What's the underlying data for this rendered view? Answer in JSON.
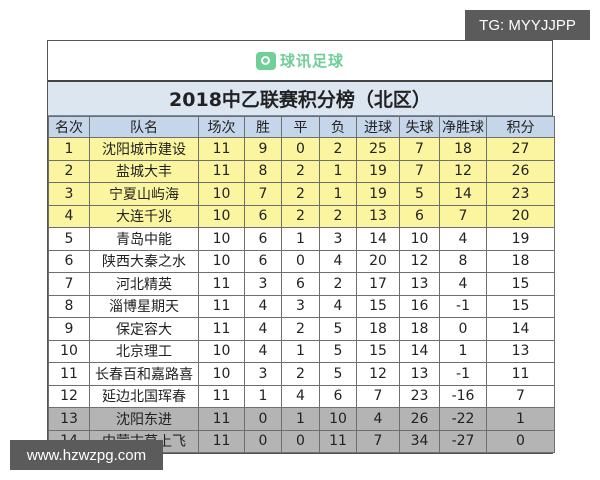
{
  "logo": {
    "text": "球讯足球",
    "icon": "speech-bubble-icon",
    "color": "#6fcf97"
  },
  "title": "2018中乙联赛积分榜（北区）",
  "colors": {
    "header_bg": "#c5d5ea",
    "title_bg": "#dce6f1",
    "promotion_rows": "#fcf5a0",
    "relegation_rows": "#b4b4b4"
  },
  "table": {
    "headers": [
      "名次",
      "队名",
      "场次",
      "胜",
      "平",
      "负",
      "进球",
      "失球",
      "净胜球",
      "积分"
    ],
    "rows": [
      {
        "zone": "top",
        "cells": [
          "1",
          "沈阳城市建设",
          "11",
          "9",
          "0",
          "2",
          "25",
          "7",
          "18",
          "27"
        ]
      },
      {
        "zone": "top",
        "cells": [
          "2",
          "盐城大丰",
          "11",
          "8",
          "2",
          "1",
          "19",
          "7",
          "12",
          "26"
        ]
      },
      {
        "zone": "top",
        "cells": [
          "3",
          "宁夏山屿海",
          "10",
          "7",
          "2",
          "1",
          "19",
          "5",
          "14",
          "23"
        ]
      },
      {
        "zone": "top",
        "cells": [
          "4",
          "大连千兆",
          "10",
          "6",
          "2",
          "2",
          "13",
          "6",
          "7",
          "20"
        ]
      },
      {
        "zone": "mid",
        "cells": [
          "5",
          "青岛中能",
          "10",
          "6",
          "1",
          "3",
          "14",
          "10",
          "4",
          "19"
        ]
      },
      {
        "zone": "mid",
        "cells": [
          "6",
          "陕西大秦之水",
          "10",
          "6",
          "0",
          "4",
          "20",
          "12",
          "8",
          "18"
        ]
      },
      {
        "zone": "mid",
        "cells": [
          "7",
          "河北精英",
          "11",
          "3",
          "6",
          "2",
          "17",
          "13",
          "4",
          "15"
        ]
      },
      {
        "zone": "mid",
        "cells": [
          "8",
          "淄博星期天",
          "11",
          "4",
          "3",
          "4",
          "15",
          "16",
          "-1",
          "15"
        ]
      },
      {
        "zone": "mid",
        "cells": [
          "9",
          "保定容大",
          "11",
          "4",
          "2",
          "5",
          "18",
          "18",
          "0",
          "14"
        ]
      },
      {
        "zone": "mid",
        "cells": [
          "10",
          "北京理工",
          "10",
          "4",
          "1",
          "5",
          "15",
          "14",
          "1",
          "13"
        ]
      },
      {
        "zone": "mid",
        "cells": [
          "11",
          "长春百和嘉路喜",
          "10",
          "3",
          "2",
          "5",
          "12",
          "13",
          "-1",
          "11"
        ]
      },
      {
        "zone": "mid",
        "cells": [
          "12",
          "延边北国珲春",
          "11",
          "1",
          "4",
          "6",
          "7",
          "23",
          "-16",
          "7"
        ]
      },
      {
        "zone": "bottom",
        "cells": [
          "13",
          "沈阳东进",
          "11",
          "0",
          "1",
          "10",
          "4",
          "26",
          "-22",
          "1"
        ]
      },
      {
        "zone": "bottom",
        "cells": [
          "14",
          "内蒙古草上飞",
          "11",
          "0",
          "0",
          "11",
          "7",
          "34",
          "-27",
          "0"
        ]
      }
    ]
  },
  "watermarks": {
    "top_right": "TG: MYYJJPP",
    "bottom_left": "www.hzwzpg.com"
  }
}
